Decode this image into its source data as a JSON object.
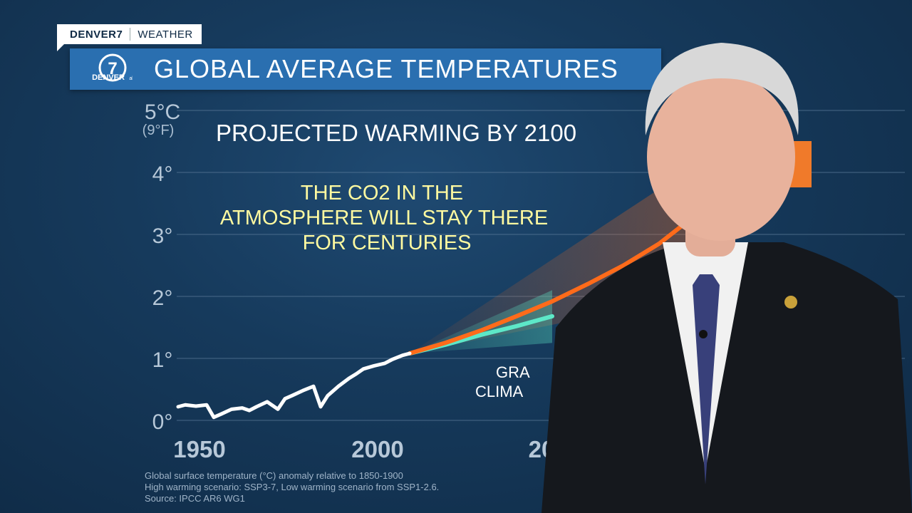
{
  "bug": {
    "brand": "DENVER7",
    "section": "WEATHER"
  },
  "header": {
    "title": "GLOBAL AVERAGE TEMPERATURES",
    "logo_number": "7",
    "logo_text": "DENVER",
    "logo_net": "abc"
  },
  "chart_data": {
    "type": "line",
    "title": "PROJECTED WARMING BY 2100",
    "annotation": [
      "THE CO2 IN THE",
      "ATMOSPHERE WILL STAY THERE",
      "FOR CENTURIES"
    ],
    "y_ticks": [
      "0°",
      "1°",
      "2°",
      "3°",
      "4°",
      "5°C"
    ],
    "y_top_secondary": "(9°F)",
    "x_ticks": [
      "1950",
      "2000",
      "20"
    ],
    "xlim": [
      1950,
      2100
    ],
    "ylim": [
      0,
      5
    ],
    "grid": true,
    "partial_label": [
      "GRA",
      "CLIMA"
    ],
    "series": [
      {
        "role": "historical",
        "color": "#ffffff",
        "x": [
          1950,
          1952,
          1955,
          1958,
          1960,
          1962,
          1965,
          1968,
          1970,
          1972,
          1975,
          1978,
          1980,
          1982,
          1985,
          1988,
          1990,
          1992,
          1995,
          1998,
          2000,
          2002,
          2005,
          2008,
          2010,
          2013,
          2015
        ],
        "y": [
          0.22,
          0.25,
          0.23,
          0.25,
          0.05,
          0.1,
          0.18,
          0.2,
          0.16,
          0.22,
          0.3,
          0.18,
          0.35,
          0.4,
          0.48,
          0.55,
          0.22,
          0.4,
          0.55,
          0.68,
          0.75,
          0.83,
          0.88,
          0.92,
          0.98,
          1.05,
          1.08
        ]
      },
      {
        "role": "high-warming",
        "color": "#ff6b1a",
        "x": [
          2015,
          2025,
          2035,
          2045,
          2055,
          2065,
          2075,
          2085,
          2095,
          2100
        ],
        "y": [
          1.08,
          1.25,
          1.45,
          1.68,
          1.92,
          2.2,
          2.5,
          2.85,
          3.3,
          3.5
        ]
      },
      {
        "role": "low-warming",
        "color": "#5de8c8",
        "x": [
          2015,
          2025,
          2035,
          2045,
          2055
        ],
        "y": [
          1.08,
          1.22,
          1.38,
          1.52,
          1.68
        ]
      }
    ]
  },
  "notes": [
    "Global surface temperature (°C) anomaly relative to 1850-1900",
    "High warming scenario: SSP3-7, Low warming scenario from SSP1-2.6.",
    "Source: IPCC AR6 WG1"
  ]
}
